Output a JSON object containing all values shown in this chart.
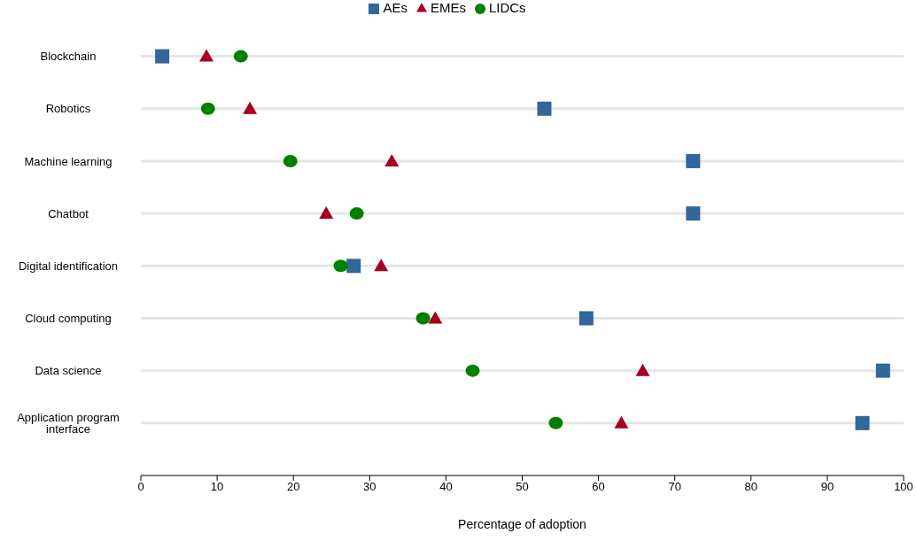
{
  "chart_data": {
    "type": "scatter",
    "xlabel": "Percentage of adoption",
    "categories": [
      "Blockchain",
      "Robotics",
      "Machine learning",
      "Chatbot",
      "Digital identification",
      "Cloud computing",
      "Data science",
      "Application program interface"
    ],
    "orientation": "horizontal",
    "series": [
      {
        "name": "AEs",
        "color": "#336699",
        "marker": "square",
        "values": [
          2.8,
          52.9,
          72.4,
          72.4,
          27.9,
          58.4,
          97.3,
          94.6
        ]
      },
      {
        "name": "EMEs",
        "color": "#a50021",
        "marker": "triangle",
        "values": [
          8.6,
          14.3,
          32.9,
          24.3,
          31.5,
          38.6,
          65.8,
          63.0
        ]
      },
      {
        "name": "LIDCs",
        "color": "#008000",
        "marker": "circle",
        "values": [
          13.1,
          8.8,
          19.6,
          28.3,
          26.2,
          37.0,
          43.5,
          54.4
        ]
      }
    ],
    "xlim": [
      0,
      100
    ],
    "xticks": [
      0,
      10,
      20,
      30,
      40,
      50,
      60,
      70,
      80,
      90,
      100
    ],
    "grid": "y",
    "legend": "top"
  }
}
